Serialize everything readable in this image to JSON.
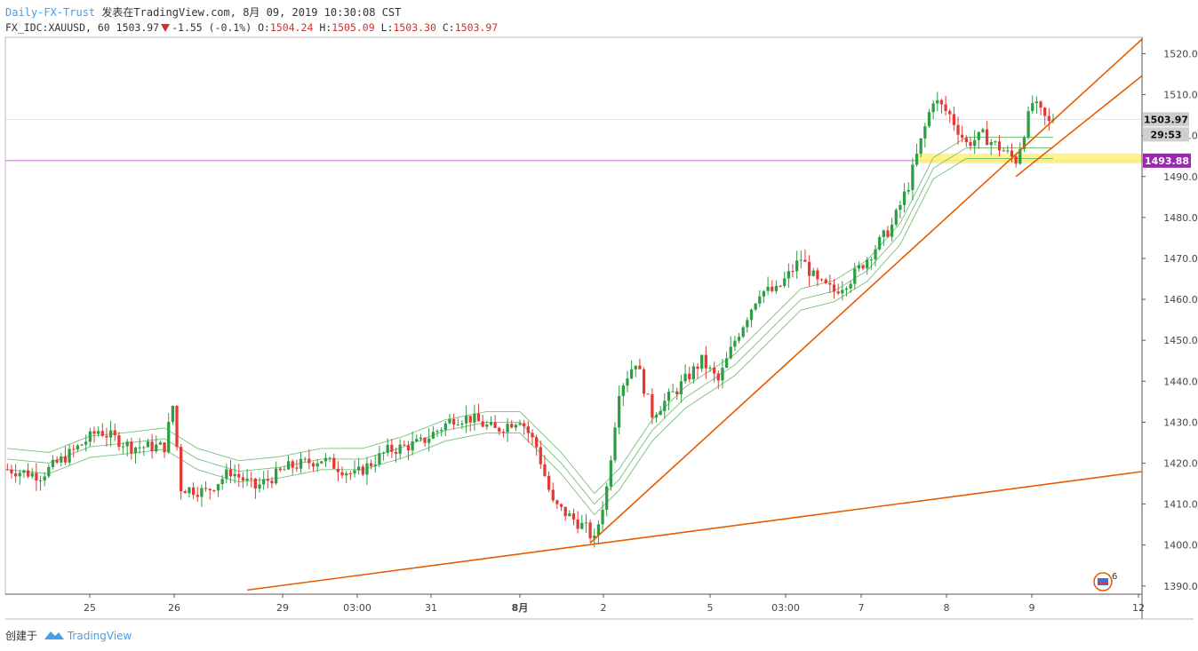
{
  "header": {
    "source": "Daily-FX-Trust",
    "published": "发表在TradingView.com, 8月 09, 2019 10:30:08 CST",
    "symbol": "FX_IDC:XAUUSD, 60",
    "last": "1503.97",
    "change": "-1.55 (-0.1%)",
    "o_label": "O:",
    "o": "1504.24",
    "h_label": "H:",
    "h": "1505.09",
    "l_label": "L:",
    "l": "1503.30",
    "c_label": "C:",
    "c": "1503.97"
  },
  "footer": {
    "created_label": "创建于",
    "brand": "TradingView"
  },
  "badge": {
    "count": "6"
  },
  "colors": {
    "up": "#26a69a",
    "down": "#ef5350",
    "candle_up": "#2e9e44",
    "candle_down": "#e53935",
    "trendline": "#e65c00",
    "ma": "#66bb6a",
    "horizontal_line": "#c26dd1",
    "zone": "#fff176",
    "label_price": "#9e9e9e",
    "label_level": "#9c27b0"
  },
  "chart_data": {
    "type": "candlestick",
    "title": "",
    "ylim": [
      1388,
      1524
    ],
    "y_ticks": [
      "1390.00",
      "1400.00",
      "1410.00",
      "1420.00",
      "1430.00",
      "1440.00",
      "1450.00",
      "1460.00",
      "1470.00",
      "1480.00",
      "1490.00",
      "1500.00",
      "1510.00",
      "1520.00"
    ],
    "x_tick_labels": [
      "25",
      "26",
      "29",
      "03:00",
      "31",
      "8月",
      "2",
      "5",
      "03:00",
      "7",
      "8",
      "9",
      "12"
    ],
    "x_tick_bold": [
      false,
      false,
      false,
      false,
      false,
      true,
      false,
      false,
      false,
      false,
      false,
      false,
      false
    ],
    "current_price": {
      "value": 1503.97,
      "label": "1503.97",
      "countdown": "29:53"
    },
    "level_line": {
      "value": 1493.88,
      "label": "1493.88"
    },
    "zone": {
      "from": 1493.2,
      "to": 1495.6,
      "start_bar": 220
    },
    "bars_total": 275,
    "trendlines": [
      {
        "from_bar": 58,
        "from": 1389,
        "to_bar": 275,
        "to": 1418
      },
      {
        "from_bar": 141,
        "from": 1400.5,
        "to_bar": 275,
        "to": 1524
      },
      {
        "from_bar": 244,
        "from": 1490,
        "to_bar": 275,
        "to": 1515
      }
    ],
    "close_path": [
      [
        0,
        1418.5
      ],
      [
        8,
        1417
      ],
      [
        16,
        1423
      ],
      [
        22,
        1428
      ],
      [
        30,
        1424
      ],
      [
        38,
        1424
      ],
      [
        40,
        1434
      ],
      [
        42,
        1414
      ],
      [
        48,
        1413
      ],
      [
        54,
        1418
      ],
      [
        60,
        1414
      ],
      [
        68,
        1419
      ],
      [
        76,
        1421
      ],
      [
        84,
        1417
      ],
      [
        92,
        1423
      ],
      [
        100,
        1425
      ],
      [
        108,
        1431
      ],
      [
        112,
        1431
      ],
      [
        118,
        1428
      ],
      [
        124,
        1431
      ],
      [
        128,
        1424
      ],
      [
        132,
        1410
      ],
      [
        140,
        1404
      ],
      [
        142,
        1401
      ],
      [
        145,
        1414
      ],
      [
        148,
        1438
      ],
      [
        152,
        1445
      ],
      [
        156,
        1432
      ],
      [
        162,
        1438
      ],
      [
        168,
        1445
      ],
      [
        172,
        1440
      ],
      [
        176,
        1450
      ],
      [
        182,
        1462
      ],
      [
        186,
        1462
      ],
      [
        192,
        1470
      ],
      [
        196,
        1464
      ],
      [
        200,
        1462
      ],
      [
        204,
        1465
      ],
      [
        208,
        1470
      ],
      [
        214,
        1478
      ],
      [
        218,
        1488
      ],
      [
        224,
        1509
      ],
      [
        228,
        1505
      ],
      [
        232,
        1498
      ],
      [
        236,
        1500
      ],
      [
        240,
        1497
      ],
      [
        244,
        1494
      ],
      [
        248,
        1508
      ],
      [
        252,
        1503
      ],
      [
        253,
        1504
      ]
    ],
    "ma_envelope": [
      [
        0,
        1421
      ],
      [
        10,
        1420
      ],
      [
        20,
        1424
      ],
      [
        30,
        1425
      ],
      [
        38,
        1426
      ],
      [
        46,
        1421
      ],
      [
        56,
        1418
      ],
      [
        66,
        1419
      ],
      [
        76,
        1421
      ],
      [
        86,
        1421
      ],
      [
        96,
        1424
      ],
      [
        106,
        1428
      ],
      [
        116,
        1430
      ],
      [
        124,
        1430
      ],
      [
        134,
        1420
      ],
      [
        142,
        1410
      ],
      [
        148,
        1416
      ],
      [
        156,
        1428
      ],
      [
        164,
        1436
      ],
      [
        170,
        1440
      ],
      [
        176,
        1444
      ],
      [
        184,
        1452
      ],
      [
        192,
        1460
      ],
      [
        200,
        1462
      ],
      [
        208,
        1467
      ],
      [
        216,
        1476
      ],
      [
        224,
        1492
      ],
      [
        232,
        1497
      ],
      [
        240,
        1497
      ],
      [
        248,
        1497
      ],
      [
        253,
        1497
      ]
    ]
  }
}
